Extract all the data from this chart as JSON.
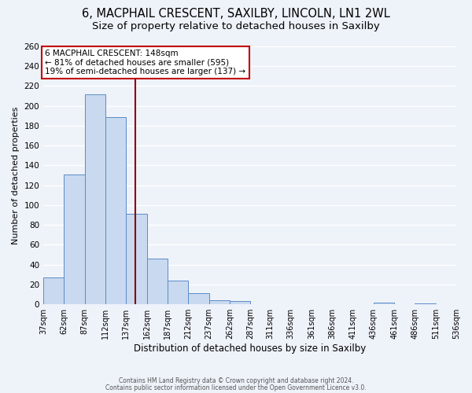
{
  "title": "6, MACPHAIL CRESCENT, SAXILBY, LINCOLN, LN1 2WL",
  "subtitle": "Size of property relative to detached houses in Saxilby",
  "xlabel": "Distribution of detached houses by size in Saxilby",
  "ylabel": "Number of detached properties",
  "bar_values": [
    27,
    131,
    212,
    189,
    91,
    46,
    24,
    11,
    4,
    3,
    0,
    0,
    0,
    0,
    0,
    0,
    2,
    0,
    1,
    0
  ],
  "bar_edges": [
    37,
    62,
    87,
    112,
    137,
    162,
    187,
    212,
    237,
    262,
    287,
    311,
    336,
    361,
    386,
    411,
    436,
    461,
    486,
    511,
    536
  ],
  "bar_labels": [
    "37sqm",
    "62sqm",
    "87sqm",
    "112sqm",
    "137sqm",
    "162sqm",
    "187sqm",
    "212sqm",
    "237sqm",
    "262sqm",
    "287sqm",
    "311sqm",
    "336sqm",
    "361sqm",
    "386sqm",
    "411sqm",
    "436sqm",
    "461sqm",
    "486sqm",
    "511sqm",
    "536sqm"
  ],
  "bar_color": "#c9d9ef",
  "bar_edge_color": "#5b8bc9",
  "property_size": 148,
  "vline_color": "#8b0000",
  "annotation_title": "6 MACPHAIL CRESCENT: 148sqm",
  "annotation_line1": "← 81% of detached houses are smaller (595)",
  "annotation_line2": "19% of semi-detached houses are larger (137) →",
  "annotation_box_edge": "#c00000",
  "ylim": [
    0,
    260
  ],
  "yticks": [
    0,
    20,
    40,
    60,
    80,
    100,
    120,
    140,
    160,
    180,
    200,
    220,
    240,
    260
  ],
  "footer1": "Contains HM Land Registry data © Crown copyright and database right 2024.",
  "footer2": "Contains public sector information licensed under the Open Government Licence v3.0.",
  "background_color": "#eef2f9",
  "grid_color": "#ffffff",
  "title_fontsize": 10.5,
  "subtitle_fontsize": 9.5
}
